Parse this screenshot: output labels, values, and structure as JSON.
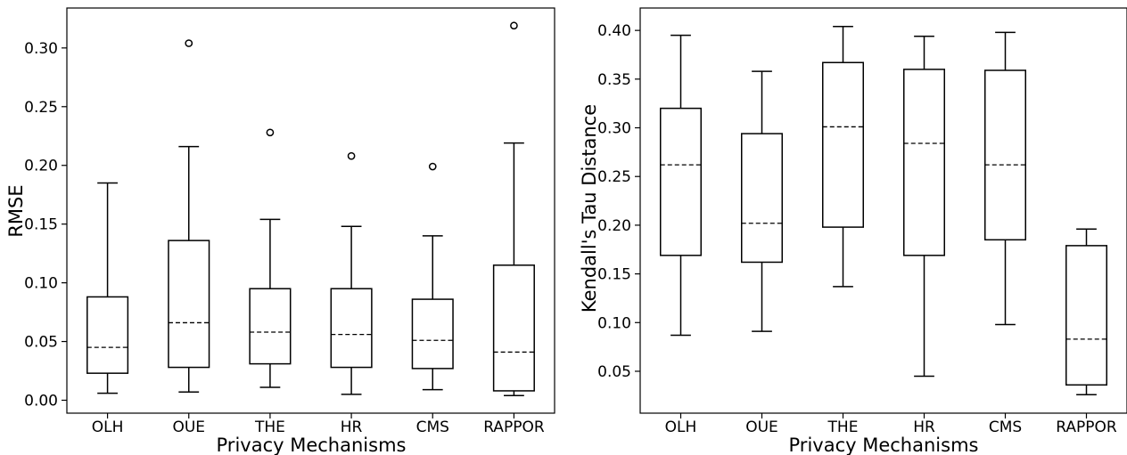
{
  "chart_data": [
    {
      "type": "box",
      "xlabel": "Privacy Mechanisms",
      "ylabel": "RMSE",
      "ylim": [
        -0.011,
        0.334
      ],
      "yticks": [
        0.0,
        0.05,
        0.1,
        0.15,
        0.2,
        0.25,
        0.3
      ],
      "ytick_labels": [
        "0.00",
        "0.05",
        "0.10",
        "0.15",
        "0.20",
        "0.25",
        "0.30"
      ],
      "median_style": "dashed",
      "categories": [
        "OLH",
        "OUE",
        "THE",
        "HR",
        "CMS",
        "RAPPOR"
      ],
      "boxes": [
        {
          "whislo": 0.006,
          "q1": 0.023,
          "med": 0.045,
          "q3": 0.088,
          "whishi": 0.185,
          "fliers": []
        },
        {
          "whislo": 0.007,
          "q1": 0.028,
          "med": 0.066,
          "q3": 0.136,
          "whishi": 0.216,
          "fliers": [
            0.304
          ]
        },
        {
          "whislo": 0.011,
          "q1": 0.031,
          "med": 0.058,
          "q3": 0.095,
          "whishi": 0.154,
          "fliers": [
            0.228
          ]
        },
        {
          "whislo": 0.005,
          "q1": 0.028,
          "med": 0.056,
          "q3": 0.095,
          "whishi": 0.148,
          "fliers": [
            0.208
          ]
        },
        {
          "whislo": 0.009,
          "q1": 0.027,
          "med": 0.051,
          "q3": 0.086,
          "whishi": 0.14,
          "fliers": [
            0.199
          ]
        },
        {
          "whislo": 0.004,
          "q1": 0.008,
          "med": 0.041,
          "q3": 0.115,
          "whishi": 0.219,
          "fliers": [
            0.319
          ]
        }
      ]
    },
    {
      "type": "box",
      "xlabel": "Privacy Mechanisms",
      "ylabel": "Kendall's Tau Distance",
      "ylim": [
        0.007,
        0.423
      ],
      "yticks": [
        0.05,
        0.1,
        0.15,
        0.2,
        0.25,
        0.3,
        0.35,
        0.4
      ],
      "ytick_labels": [
        "0.05",
        "0.10",
        "0.15",
        "0.20",
        "0.25",
        "0.30",
        "0.35",
        "0.40"
      ],
      "median_style": "dashed",
      "categories": [
        "OLH",
        "OUE",
        "THE",
        "HR",
        "CMS",
        "RAPPOR"
      ],
      "boxes": [
        {
          "whislo": 0.087,
          "q1": 0.169,
          "med": 0.262,
          "q3": 0.32,
          "whishi": 0.395,
          "fliers": []
        },
        {
          "whislo": 0.091,
          "q1": 0.162,
          "med": 0.202,
          "q3": 0.294,
          "whishi": 0.358,
          "fliers": []
        },
        {
          "whislo": 0.137,
          "q1": 0.198,
          "med": 0.301,
          "q3": 0.367,
          "whishi": 0.404,
          "fliers": []
        },
        {
          "whislo": 0.045,
          "q1": 0.169,
          "med": 0.284,
          "q3": 0.36,
          "whishi": 0.394,
          "fliers": []
        },
        {
          "whislo": 0.098,
          "q1": 0.185,
          "med": 0.262,
          "q3": 0.359,
          "whishi": 0.398,
          "fliers": []
        },
        {
          "whislo": 0.026,
          "q1": 0.036,
          "med": 0.083,
          "q3": 0.179,
          "whishi": 0.196,
          "fliers": []
        }
      ]
    }
  ]
}
